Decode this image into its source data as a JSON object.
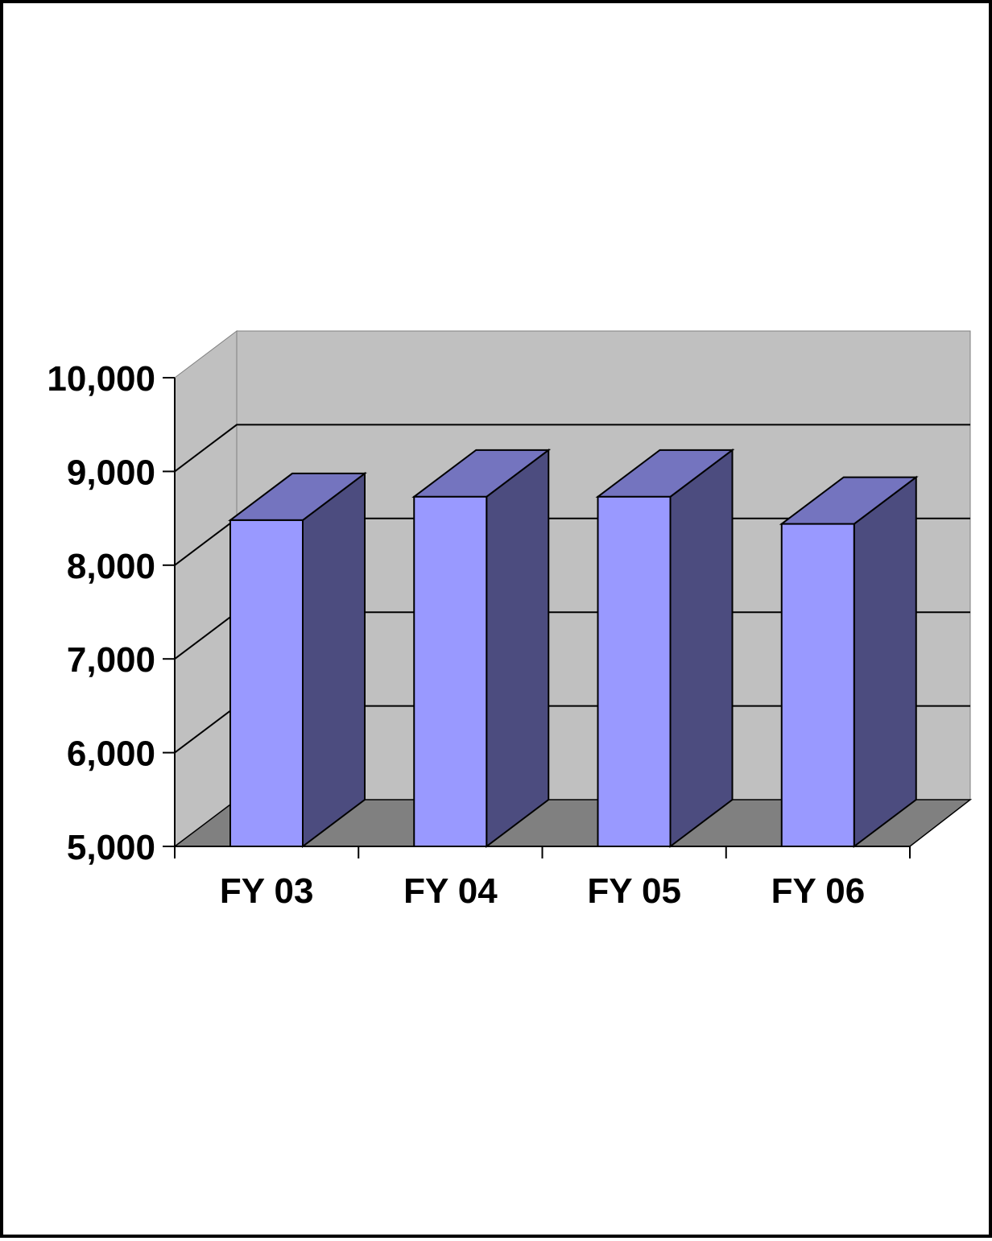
{
  "chart_data": {
    "type": "bar",
    "style": "3d-column",
    "categories": [
      "FY 03",
      "FY 04",
      "FY 05",
      "FY 06"
    ],
    "values": [
      8480,
      8730,
      8730,
      8440
    ],
    "ylim": [
      5000,
      10000
    ],
    "yticks": [
      5000,
      6000,
      7000,
      8000,
      9000,
      10000
    ],
    "ytick_labels": [
      "5,000",
      "6,000",
      "7,000",
      "8,000",
      "9,000",
      "10,000"
    ],
    "title": "",
    "xlabel": "",
    "ylabel": "",
    "grid": true,
    "legend": "none",
    "colors": {
      "bar_front": "#9999ff",
      "bar_top": "#7474bf",
      "bar_side": "#4c4c7f",
      "back_wall": "#c0c0c0",
      "side_wall": "#c0c0c0",
      "floor": "#808080",
      "gridline": "#000000"
    }
  }
}
